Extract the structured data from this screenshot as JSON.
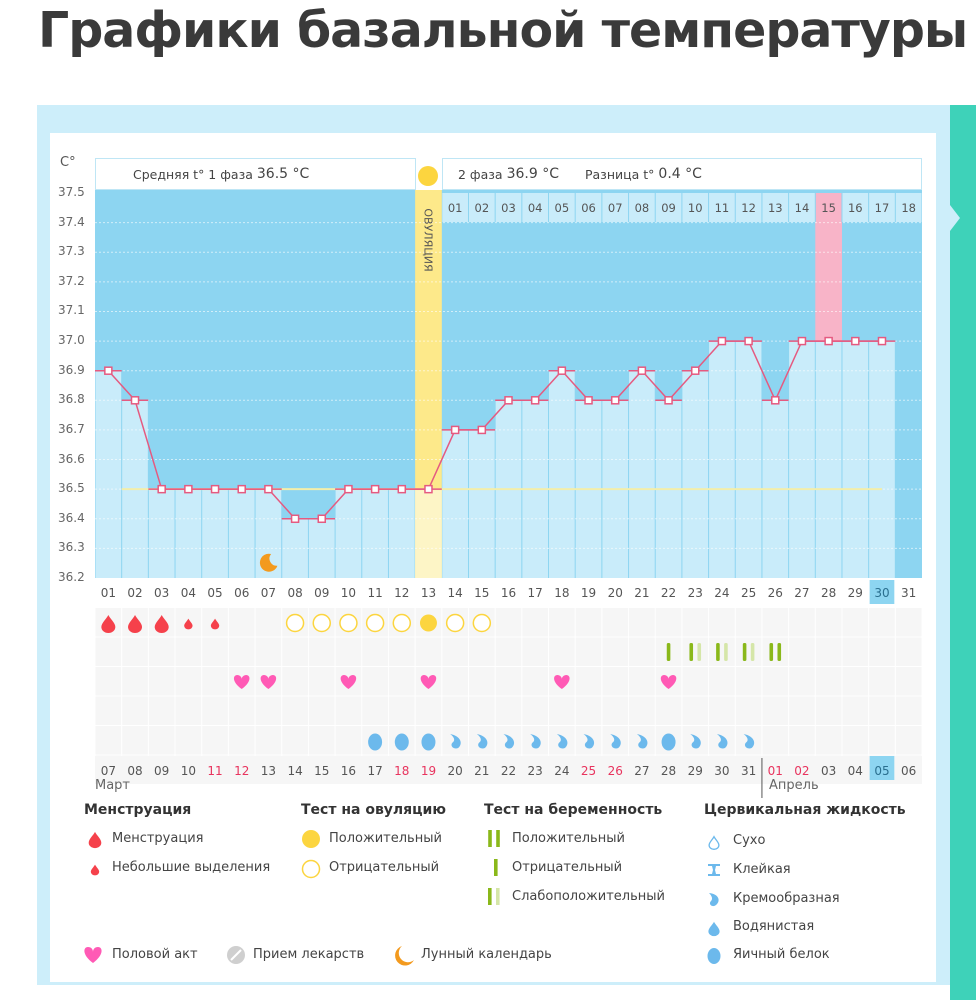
{
  "page_title": "Графики базальной температуры",
  "header": {
    "phase1_label": "Средняя t° 1 фаза",
    "phase1_value": "36.5 °C",
    "phase2_label": "2 фаза",
    "phase2_value": "36.9 °C",
    "diff_label": "Разница t°",
    "diff_value": "0.4 °C",
    "ovulation_label": "ОВУЛЯЦИЯ"
  },
  "chart_data": {
    "type": "line",
    "ylabel": "C°",
    "ylim": [
      36.2,
      37.5
    ],
    "yticks": [
      "37.5",
      "37.4",
      "37.3",
      "37.2",
      "37.1",
      "37.0",
      "36.9",
      "36.8",
      "36.7",
      "36.6",
      "36.5",
      "36.4",
      "36.3",
      "36.2"
    ],
    "cycle_days": [
      "01",
      "02",
      "03",
      "04",
      "05",
      "06",
      "07",
      "08",
      "09",
      "10",
      "11",
      "12",
      "13",
      "14",
      "15",
      "16",
      "17",
      "18",
      "19",
      "20",
      "21",
      "22",
      "23",
      "24",
      "25",
      "26",
      "27",
      "28",
      "29",
      "30",
      "31"
    ],
    "temperatures": [
      36.9,
      36.8,
      36.5,
      36.5,
      36.5,
      36.5,
      36.5,
      36.4,
      36.4,
      36.5,
      36.5,
      36.5,
      36.5,
      36.7,
      36.7,
      36.8,
      36.8,
      36.9,
      36.8,
      36.8,
      36.9,
      36.8,
      36.9,
      37.0,
      37.0,
      36.8,
      37.0,
      37.0,
      37.0,
      37.0,
      null
    ],
    "coverline": 36.5,
    "ovulation_day": 13,
    "phase2_days": [
      "01",
      "02",
      "03",
      "04",
      "05",
      "06",
      "07",
      "08",
      "09",
      "10",
      "11",
      "12",
      "13",
      "14",
      "15",
      "16",
      "17",
      "18"
    ],
    "phase2_highlight": "15",
    "current_cycle_day": "30",
    "moon_day": 7,
    "grid": true
  },
  "dates": [
    "07",
    "08",
    "09",
    "10",
    "11",
    "12",
    "13",
    "14",
    "15",
    "16",
    "17",
    "18",
    "19",
    "20",
    "21",
    "22",
    "23",
    "24",
    "25",
    "26",
    "27",
    "28",
    "29",
    "30",
    "31",
    "01",
    "02",
    "03",
    "04",
    "05",
    "06"
  ],
  "weekend_dates": [
    5,
    6,
    12,
    13,
    19,
    20,
    26,
    27
  ],
  "today_index": 30,
  "months": {
    "first": "Март",
    "second": "Апрель"
  },
  "month_break_day": 26,
  "markers": {
    "menstruation": [
      {
        "day": 1,
        "type": "heavy"
      },
      {
        "day": 2,
        "type": "heavy"
      },
      {
        "day": 3,
        "type": "heavy"
      },
      {
        "day": 4,
        "type": "light"
      },
      {
        "day": 5,
        "type": "light"
      }
    ],
    "ovulation_test": [
      {
        "day": 8,
        "type": "negative"
      },
      {
        "day": 9,
        "type": "negative"
      },
      {
        "day": 10,
        "type": "negative"
      },
      {
        "day": 11,
        "type": "negative"
      },
      {
        "day": 12,
        "type": "negative"
      },
      {
        "day": 13,
        "type": "positive"
      },
      {
        "day": 14,
        "type": "negative"
      },
      {
        "day": 15,
        "type": "negative"
      }
    ],
    "pregnancy_test": [
      {
        "day": 22,
        "type": "negative"
      },
      {
        "day": 23,
        "type": "weak"
      },
      {
        "day": 24,
        "type": "weak"
      },
      {
        "day": 25,
        "type": "weak"
      },
      {
        "day": 26,
        "type": "positive"
      }
    ],
    "intercourse": [
      6,
      7,
      10,
      13,
      18,
      22
    ],
    "cervical_fluid": [
      {
        "day": 11,
        "type": "egg"
      },
      {
        "day": 12,
        "type": "egg"
      },
      {
        "day": 13,
        "type": "egg"
      },
      {
        "day": 14,
        "type": "creamy"
      },
      {
        "day": 15,
        "type": "creamy"
      },
      {
        "day": 16,
        "type": "creamy"
      },
      {
        "day": 17,
        "type": "creamy"
      },
      {
        "day": 18,
        "type": "creamy"
      },
      {
        "day": 19,
        "type": "creamy"
      },
      {
        "day": 20,
        "type": "creamy"
      },
      {
        "day": 21,
        "type": "creamy"
      },
      {
        "day": 22,
        "type": "egg"
      },
      {
        "day": 23,
        "type": "creamy"
      },
      {
        "day": 24,
        "type": "creamy"
      },
      {
        "day": 25,
        "type": "creamy"
      }
    ]
  },
  "legend": {
    "menstruation": {
      "title": "Менструация",
      "items": [
        "Менструация",
        "Небольшие выделения"
      ]
    },
    "ovulation_test": {
      "title": "Тест на овуляцию",
      "items": [
        "Положительный",
        "Отрицательный"
      ]
    },
    "pregnancy_test": {
      "title": "Тест на беременность",
      "items": [
        "Положительный",
        "Отрицательный",
        "Слабоположительный"
      ]
    },
    "cervical_fluid": {
      "title": "Цервикальная жидкость",
      "items": [
        "Сухо",
        "Клейкая",
        "Кремообразная",
        "Водянистая",
        "Яичный белок"
      ]
    },
    "misc": [
      "Половой акт",
      "Прием лекарств",
      "Лунный календарь"
    ]
  },
  "colors": {
    "bar_fill": "#c9ecfa",
    "bar_bg": "#8dd5f1",
    "line": "#e55a80",
    "ovulation": "#fde98a",
    "coverline": "#f3eeaa",
    "highlight": "#f8b4c8",
    "blood": "#f5414b",
    "ovu_yellow": "#fcd53f",
    "preg_green": "#8ab81a",
    "preg_light": "#d5e6a8",
    "heart": "#ff5ab5",
    "cervix": "#6cb9ec",
    "moon": "#f39a1e"
  }
}
